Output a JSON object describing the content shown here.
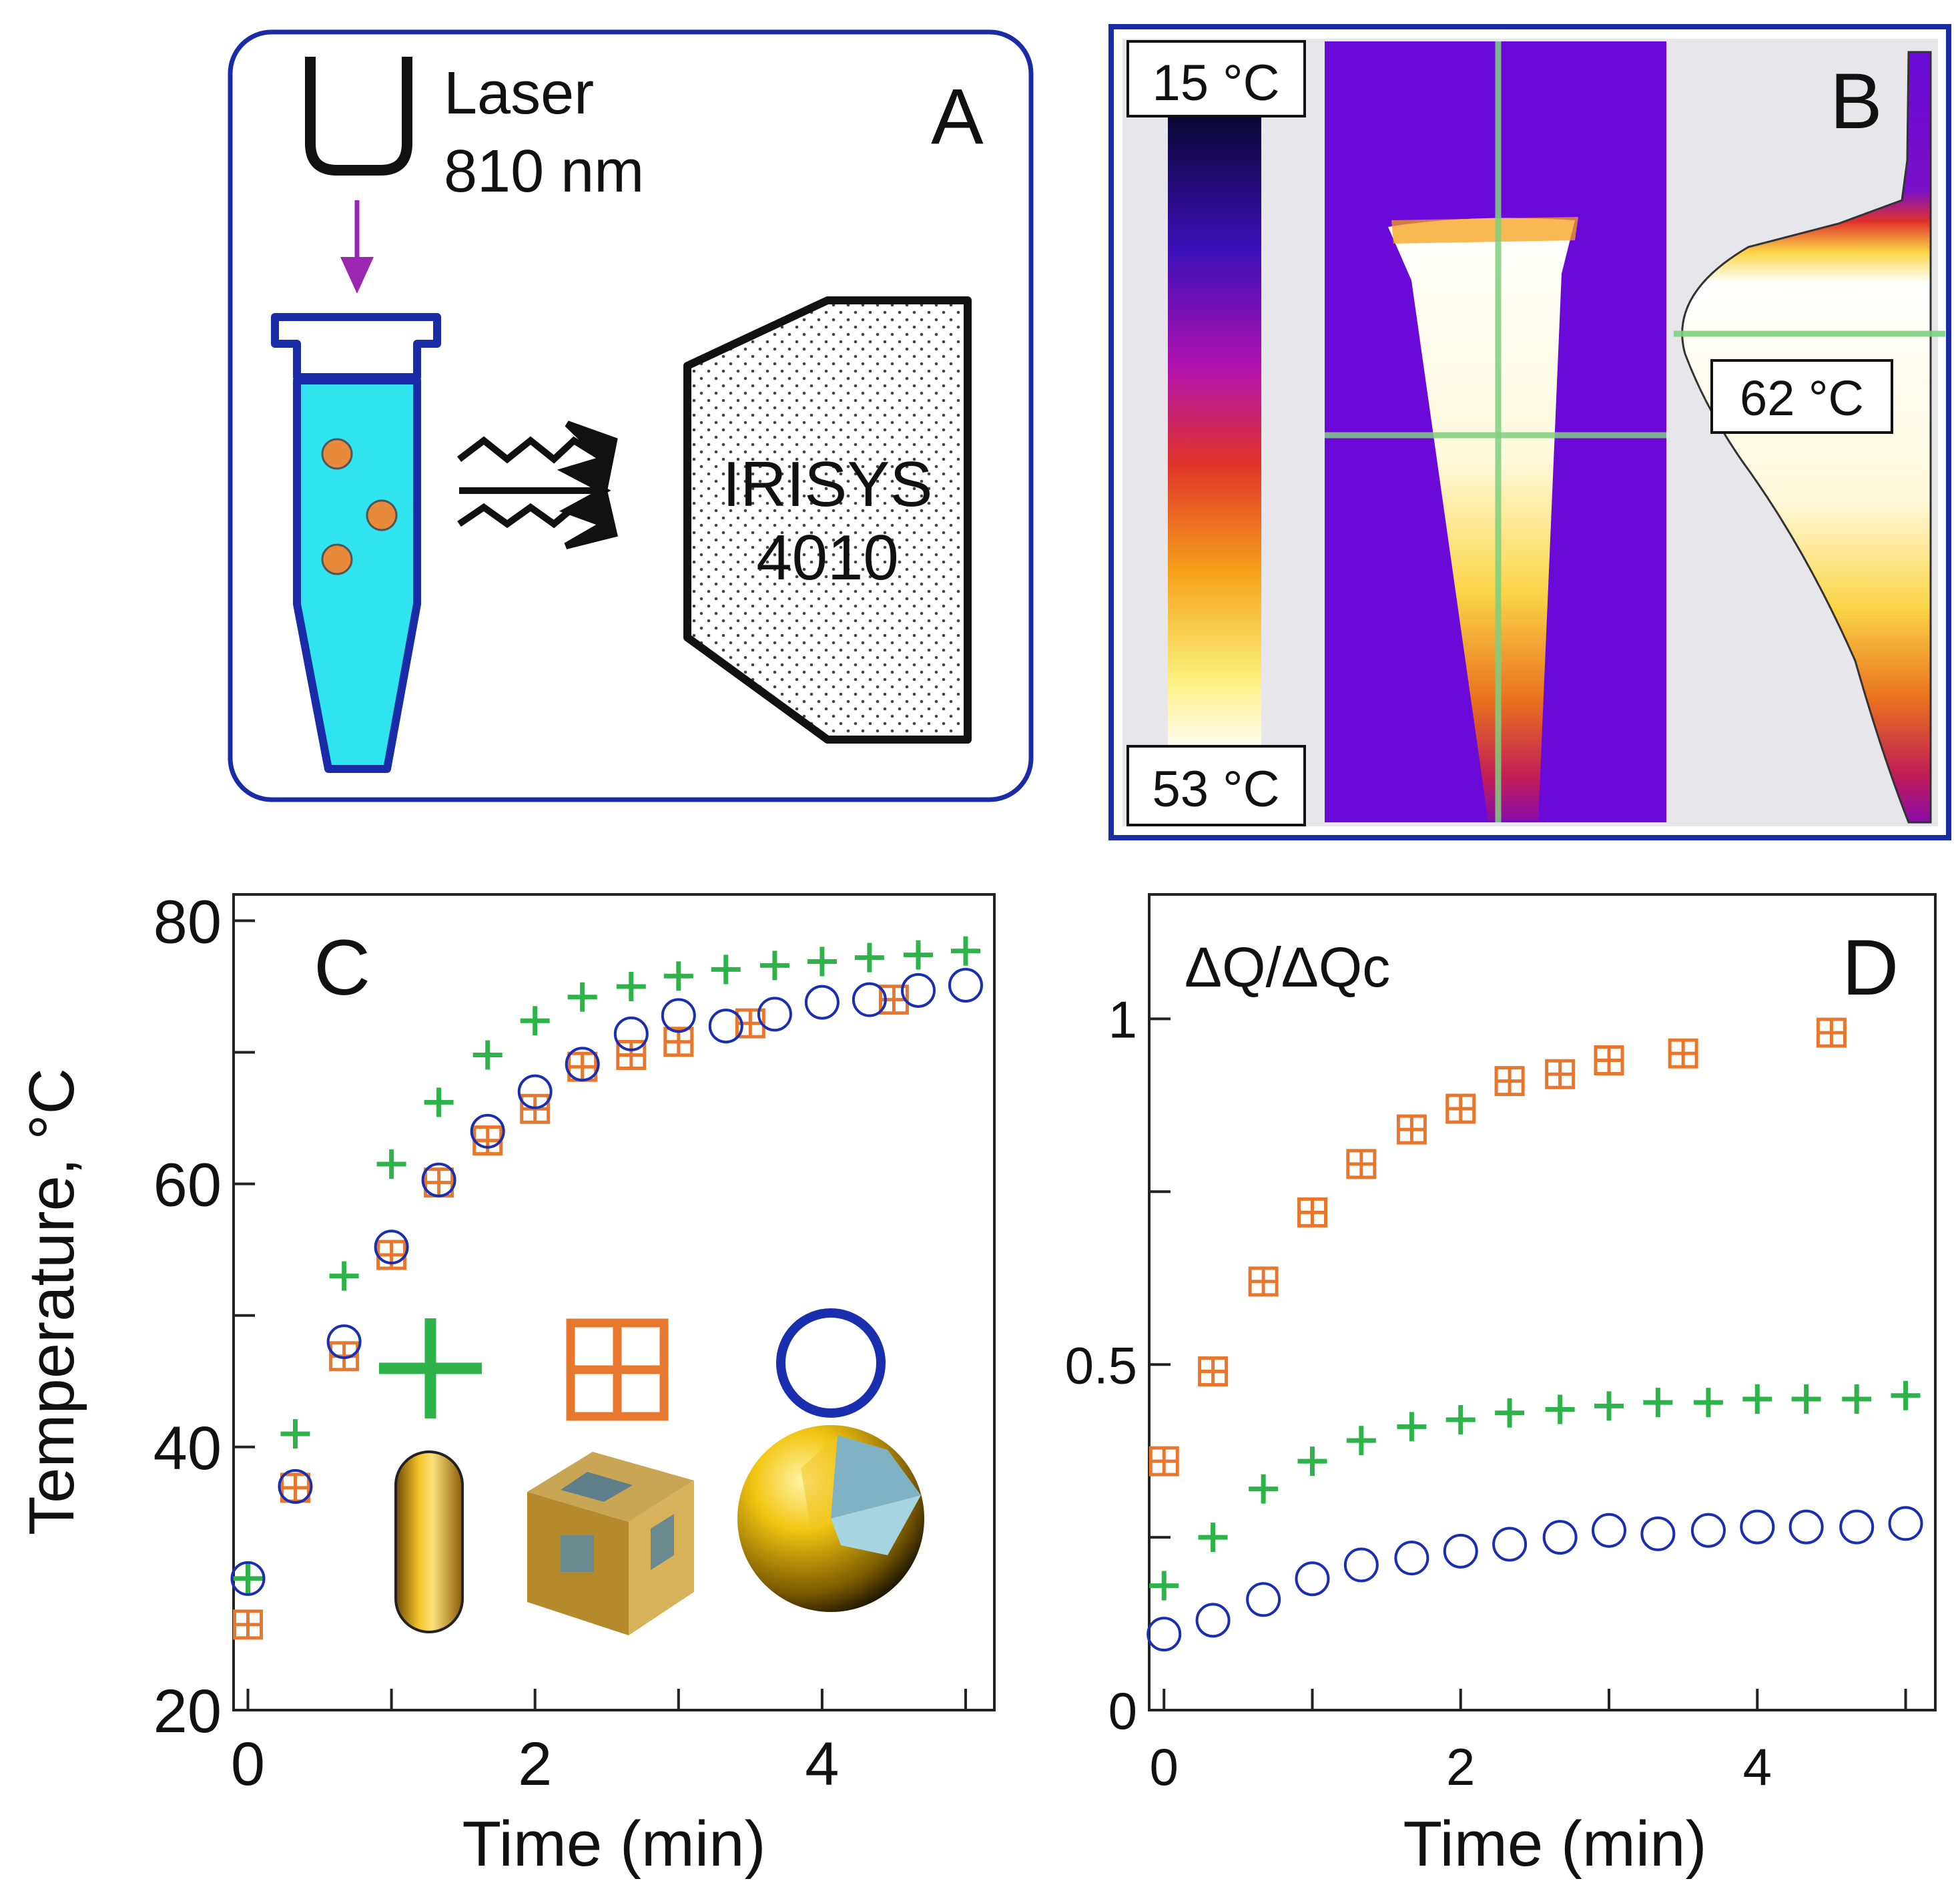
{
  "panels": {
    "a": {
      "letter": "A",
      "laser_line1": "Laser",
      "laser_line2": "810 nm",
      "device_line1": "IRISYS",
      "device_line2": "4010"
    },
    "b": {
      "letter": "B",
      "scale_top": "15 °C",
      "scale_bottom": "53 °C",
      "peak_label": "62 °C"
    },
    "c": {
      "letter": "C"
    },
    "d": {
      "letter": "D"
    }
  },
  "colors": {
    "frame_blue": "#1a2ba8",
    "rod_green": "#2db34a",
    "cube_orange": "#e8772e",
    "shell_blue": "#1a2fb0",
    "liquid": "#2fe3ef",
    "particle": "#e88a3c",
    "arrow": "#9b27b0",
    "ir_background": "#6b0ad8"
  },
  "chart_data": [
    {
      "id": "C",
      "type": "scatter",
      "title": "",
      "xlabel": "Time (min)",
      "ylabel": "Temperature, °C",
      "xlim": [
        -0.1,
        5.2
      ],
      "ylim": [
        20,
        82
      ],
      "xticks": [
        0,
        2,
        4
      ],
      "yticks": [
        20,
        40,
        60,
        80
      ],
      "x_minor_ticks": [
        1,
        3,
        5
      ],
      "y_minor_ticks": [
        30,
        50,
        70
      ],
      "series": [
        {
          "name": "nanorods",
          "marker": "plus",
          "x": [
            0,
            0.33,
            0.67,
            1.0,
            1.33,
            1.67,
            2.0,
            2.33,
            2.67,
            3.0,
            3.33,
            3.67,
            4.0,
            4.33,
            4.67,
            5.0
          ],
          "y": [
            30.0,
            41.0,
            53.0,
            61.5,
            66.2,
            69.8,
            72.4,
            74.2,
            75.0,
            75.8,
            76.3,
            76.6,
            76.9,
            77.2,
            77.4,
            77.7
          ]
        },
        {
          "name": "nanocages",
          "marker": "square-cross",
          "x": [
            0,
            0.33,
            0.67,
            1.0,
            1.33,
            1.67,
            2.0,
            2.33,
            2.67,
            3.0,
            3.5,
            4.5
          ],
          "y": [
            26.5,
            36.9,
            46.9,
            54.6,
            60.1,
            63.3,
            65.7,
            68.9,
            69.8,
            70.8,
            72.2,
            74.0
          ]
        },
        {
          "name": "nanoshells",
          "marker": "circle",
          "x": [
            0,
            0.33,
            0.67,
            1.0,
            1.33,
            1.67,
            2.0,
            2.33,
            2.67,
            3.0,
            3.33,
            3.67,
            4.0,
            4.33,
            4.67,
            5.0
          ],
          "y": [
            30.0,
            37.0,
            48.0,
            55.2,
            60.3,
            64.0,
            67.0,
            69.1,
            71.4,
            72.8,
            72.0,
            72.9,
            73.8,
            74.0,
            74.7,
            75.1
          ]
        }
      ]
    },
    {
      "id": "D",
      "type": "scatter",
      "title": "ΔQ/ΔQc",
      "xlabel": "Time (min)",
      "ylabel": "",
      "xlim": [
        -0.1,
        5.2
      ],
      "ylim": [
        0,
        1.18
      ],
      "xticks": [
        0,
        2,
        4
      ],
      "yticks": [
        0,
        0.5,
        1
      ],
      "y_tick_labels": [
        "0",
        "0.5",
        "1"
      ],
      "x_minor_ticks": [
        1,
        3,
        5
      ],
      "y_minor_ticks": [
        0.25,
        0.75
      ],
      "series": [
        {
          "name": "nanocages",
          "marker": "square-cross",
          "x": [
            0,
            0.33,
            0.67,
            1.0,
            1.33,
            1.67,
            2.0,
            2.33,
            2.67,
            3.0,
            3.5,
            4.5
          ],
          "y": [
            0.36,
            0.49,
            0.62,
            0.72,
            0.79,
            0.84,
            0.87,
            0.91,
            0.92,
            0.94,
            0.95,
            0.98
          ]
        },
        {
          "name": "nanorods",
          "marker": "plus",
          "x": [
            0,
            0.33,
            0.67,
            1.0,
            1.33,
            1.67,
            2.0,
            2.33,
            2.67,
            3.0,
            3.33,
            3.67,
            4.0,
            4.33,
            4.67,
            5.0
          ],
          "y": [
            0.18,
            0.25,
            0.32,
            0.36,
            0.39,
            0.41,
            0.42,
            0.43,
            0.435,
            0.44,
            0.445,
            0.445,
            0.45,
            0.45,
            0.45,
            0.455
          ]
        },
        {
          "name": "nanoshells",
          "marker": "circle",
          "x": [
            0,
            0.33,
            0.67,
            1.0,
            1.33,
            1.67,
            2.0,
            2.33,
            2.67,
            3.0,
            3.33,
            3.67,
            4.0,
            4.33,
            4.67,
            5.0
          ],
          "y": [
            0.11,
            0.13,
            0.16,
            0.19,
            0.21,
            0.22,
            0.23,
            0.24,
            0.25,
            0.26,
            0.255,
            0.26,
            0.265,
            0.265,
            0.265,
            0.27
          ]
        }
      ]
    }
  ]
}
